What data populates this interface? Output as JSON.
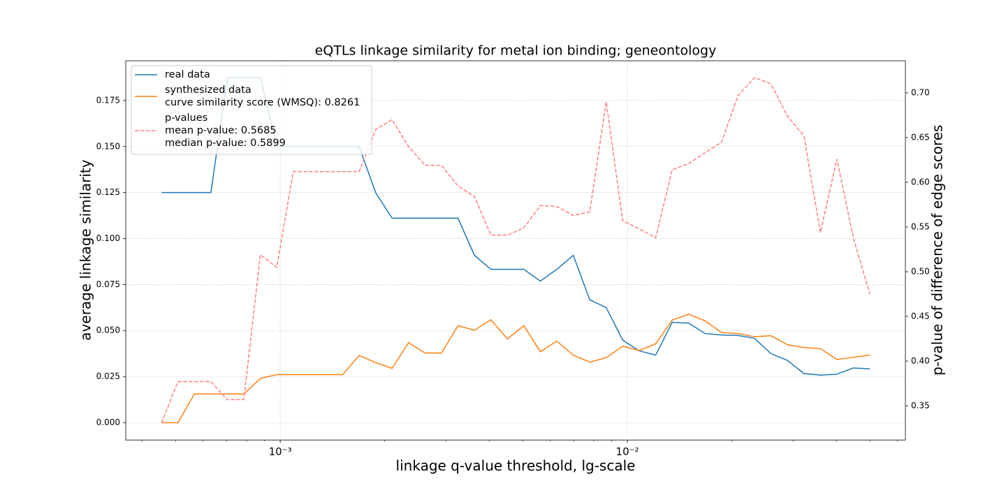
{
  "chart_data": {
    "type": "line",
    "title": "eQTLs linkage similarity for metal ion binding; geneontology",
    "x_label": "linkage q-value threshold, lg-scale",
    "y_label": "average linkage similarity",
    "y2_label": "p-value of difference of edge scores",
    "xscale": "log",
    "grid": true,
    "legend": "upper left",
    "x": [
      0.000455,
      0.0005075,
      0.000566,
      0.0006315,
      0.0007044,
      0.0007857,
      0.0008764,
      0.0009775,
      0.00109,
      0.001216,
      0.001357,
      0.001513,
      0.001688,
      0.001883,
      0.0021,
      0.002342,
      0.002613,
      0.002914,
      0.003251,
      0.003626,
      0.004045,
      0.004511,
      0.005032,
      0.005613,
      0.006261,
      0.006984,
      0.00779,
      0.008689,
      0.009696,
      0.01081,
      0.01206,
      0.01346,
      0.01501,
      0.01674,
      0.01867,
      0.02083,
      0.02323,
      0.02592,
      0.02891,
      0.03224,
      0.03597,
      0.04012,
      0.04475,
      0.04992
    ],
    "series": [
      {
        "name": "real data",
        "color": "#1f77b4",
        "linestyle": "solid",
        "values": [
          0.125,
          0.125,
          0.125,
          0.125,
          0.1875,
          0.1875,
          0.1875,
          0.15,
          0.15,
          0.15,
          0.15,
          0.15,
          0.15,
          0.125,
          0.1111,
          0.1111,
          0.1111,
          0.1111,
          0.1111,
          0.0909,
          0.0833,
          0.0833,
          0.0833,
          0.0769,
          0.0833,
          0.0909,
          0.0667,
          0.0625,
          0.0448,
          0.039,
          0.0367,
          0.0545,
          0.0541,
          0.0484,
          0.0476,
          0.0474,
          0.0458,
          0.0375,
          0.0338,
          0.0267,
          0.0258,
          0.0263,
          0.0297,
          0.0292
        ]
      },
      {
        "name": "synthesized data\ncurve similarity score (WMSQ): 0.8261",
        "color": "#ff7f0e",
        "linestyle": "solid",
        "values": [
          0,
          0,
          0.0156,
          0.0156,
          0.0156,
          0.0156,
          0.024,
          0.0261,
          0.0261,
          0.0261,
          0.0261,
          0.0261,
          0.0365,
          0.0326,
          0.0295,
          0.0435,
          0.0378,
          0.0378,
          0.0527,
          0.0502,
          0.0559,
          0.0455,
          0.0527,
          0.0385,
          0.0443,
          0.0367,
          0.0329,
          0.0353,
          0.0415,
          0.0392,
          0.0428,
          0.0557,
          0.0589,
          0.0553,
          0.049,
          0.0484,
          0.0467,
          0.0472,
          0.0423,
          0.0408,
          0.0402,
          0.0343,
          0.0355,
          0.0367
        ]
      },
      {
        "name": "p-values\nmean p-value: 0.5685\nmedian p-value: 0.5899",
        "color": "#ff7f7f",
        "linestyle": "dashed",
        "axis": "y2",
        "values": [
          0.331,
          0.377,
          0.377,
          0.377,
          0.357,
          0.357,
          0.519,
          0.505,
          0.612,
          0.612,
          0.612,
          0.612,
          0.612,
          0.659,
          0.67,
          0.64,
          0.619,
          0.619,
          0.596,
          0.584,
          0.541,
          0.541,
          0.549,
          0.574,
          0.573,
          0.563,
          0.567,
          0.69,
          0.557,
          0.548,
          0.538,
          0.614,
          0.621,
          0.633,
          0.645,
          0.697,
          0.717,
          0.71,
          0.674,
          0.652,
          0.544,
          0.626,
          0.538,
          0.475
        ]
      }
    ],
    "xlim": [
      0.000359,
      0.0632
    ],
    "xticks": [
      {
        "value": 0.001,
        "label": "10⁻³"
      },
      {
        "value": 0.01,
        "label": "10⁻²"
      }
    ],
    "ylim": [
      -0.0095,
      0.1966
    ],
    "yticks": [
      {
        "value": 0,
        "label": "0.000"
      },
      {
        "value": 0.025,
        "label": "0.025"
      },
      {
        "value": 0.05,
        "label": "0.050"
      },
      {
        "value": 0.075,
        "label": "0.075"
      },
      {
        "value": 0.1,
        "label": "0.100"
      },
      {
        "value": 0.125,
        "label": "0.125"
      },
      {
        "value": 0.15,
        "label": "0.150"
      },
      {
        "value": 0.175,
        "label": "0.175"
      }
    ],
    "y2lim": [
      0.3117,
      0.7359
    ],
    "y2ticks": [
      0.35,
      {
        "value": 0.4,
        "label": "0.40"
      },
      0.45,
      {
        "value": 0.5,
        "label": "0.50"
      },
      0.55,
      {
        "value": 0.6,
        "label": "0.60"
      },
      0.65,
      {
        "value": 0.7,
        "label": "0.70"
      }
    ]
  }
}
